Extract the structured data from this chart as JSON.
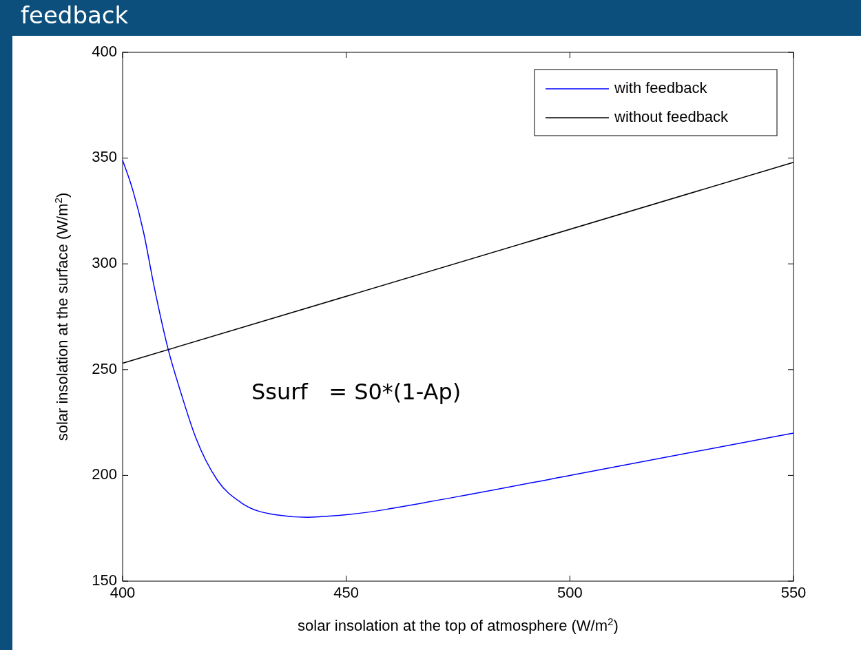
{
  "chart_data": {
    "type": "line",
    "title": "feedback",
    "xlabel": "solar insolation at the top of atmosphere (W/m$^{2}$)",
    "ylabel": "solar insolation at the surface (W/m$^{2}$)",
    "xlim": [
      400,
      550
    ],
    "xticks": [
      400,
      450,
      500,
      550
    ],
    "ylim": [
      150,
      400
    ],
    "yticks": [
      150,
      200,
      250,
      300,
      350,
      400
    ],
    "legend": "top right",
    "grid": false,
    "line_style": "solid",
    "marker": "none",
    "annotations": [
      "Ssurf   = S0*(1-Ap)"
    ],
    "series": [
      {
        "name": "with feedback",
        "color": "#0000ff",
        "x": [
          400,
          402.3,
          404.7,
          407,
          410.3,
          412.9,
          416.4,
          421.2,
          426.5,
          434.1,
          441.2,
          448.9,
          475,
          500,
          550
        ],
        "values": [
          349,
          334.7,
          314.8,
          289.8,
          258.7,
          240,
          217.6,
          197.7,
          187.1,
          181.4,
          180.2,
          181.2,
          190,
          200,
          220
        ]
      },
      {
        "name": "without feedback",
        "color": "#000000",
        "x": [
          400,
          550
        ],
        "values": [
          253,
          348
        ]
      }
    ]
  }
}
